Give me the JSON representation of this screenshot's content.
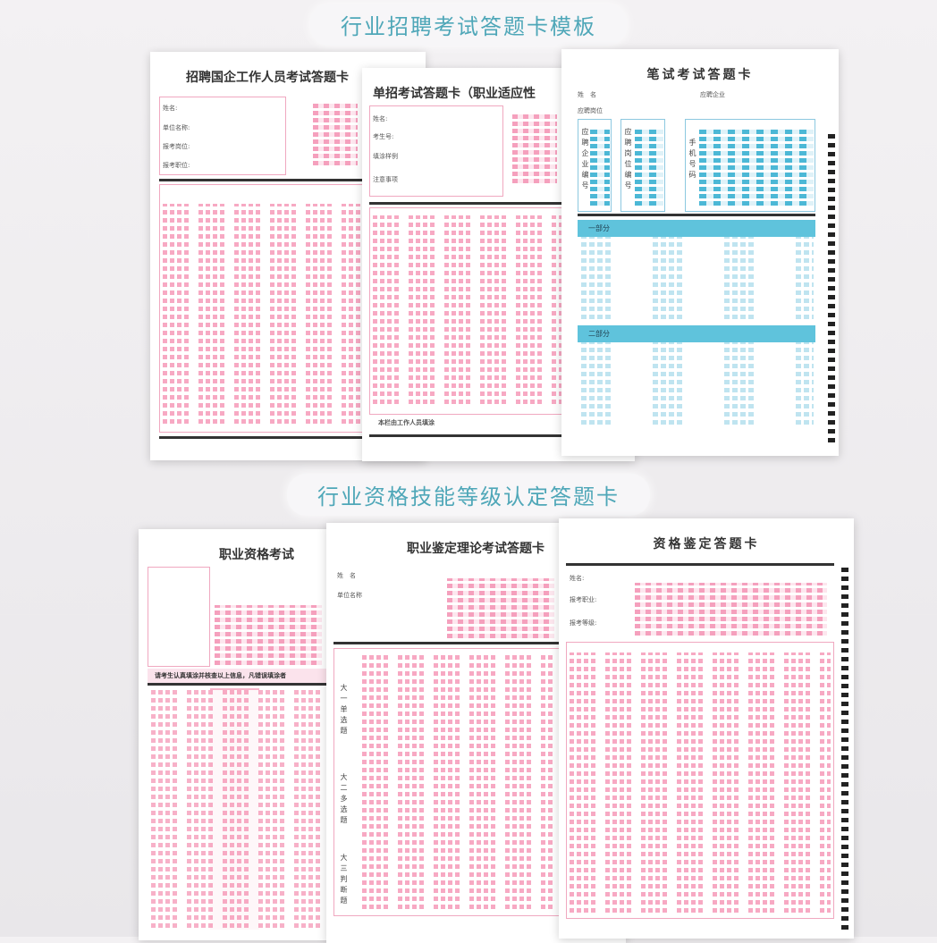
{
  "headings": {
    "recruitment": "行业招聘考试答题卡模板",
    "qualification": "行业资格技能等级认定答题卡"
  },
  "cards": [
    {
      "title": "招聘国企工作人员考试答题卡",
      "fields": [
        "姓名:",
        "单位名称:",
        "报考岗位:",
        "报考职位:"
      ]
    },
    {
      "title": "单招考试答题卡（职业适应性",
      "fields": [
        "姓名:",
        "考生号:"
      ],
      "side_labels": [
        "填涂样例",
        "注意事项"
      ],
      "footer": "本栏由工作人员填涂"
    },
    {
      "title": "笔试考试答题卡",
      "fields": [
        "姓　名",
        "应聘企业",
        "应聘岗位"
      ],
      "columns": [
        "应聘企业编号",
        "应聘岗位编号",
        "手机号码"
      ],
      "sections": [
        "一部分",
        "二部分"
      ]
    },
    {
      "title": "职业资格考试",
      "notice": "请考生认真填涂并核查以上信息，凡错误填涂者"
    },
    {
      "title": "职业鉴定理论考试答题卡",
      "fields": [
        "姓　名",
        "单位名称"
      ],
      "side_labels": [
        "大一单选题",
        "大二多选题",
        "大三判断题"
      ]
    },
    {
      "title": "资格鉴定答题卡",
      "fields": [
        "姓名:",
        "报考职业:",
        "报考等级:"
      ]
    }
  ],
  "colors": {
    "pink": "#f59ab8",
    "blue": "#5fc3dc",
    "heading": "#4fa7b8"
  }
}
